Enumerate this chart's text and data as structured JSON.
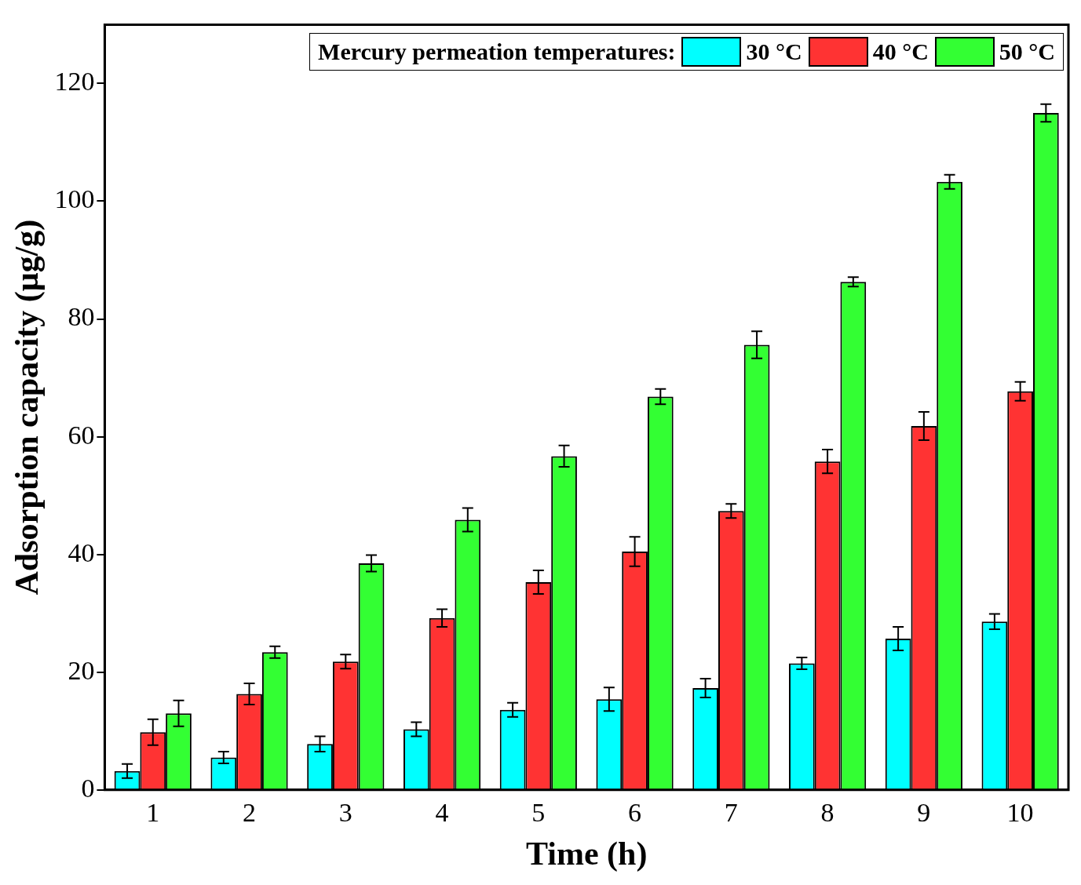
{
  "chart_data": {
    "type": "bar",
    "xlabel": "Time (h)",
    "ylabel": "Adsorption capacity (μg/g)",
    "legend_title": "Mercury permeation temperatures:",
    "legend": "top right",
    "categories": [
      "1",
      "2",
      "3",
      "4",
      "5",
      "6",
      "7",
      "8",
      "9",
      "10"
    ],
    "ylim": [
      0,
      130
    ],
    "yticks": [
      0,
      20,
      40,
      60,
      80,
      100,
      120
    ],
    "series": [
      {
        "name": "30 °C",
        "color": "#00ffff",
        "values": [
          3.2,
          5.5,
          7.8,
          10.3,
          13.6,
          15.4,
          17.3,
          21.5,
          25.7,
          28.6
        ],
        "errors": [
          1.2,
          1.0,
          1.3,
          1.2,
          1.2,
          2.0,
          1.6,
          1.0,
          2.0,
          1.3
        ]
      },
      {
        "name": "40 °C",
        "color": "#ff3333",
        "values": [
          9.8,
          16.3,
          21.8,
          29.2,
          35.3,
          40.5,
          47.4,
          55.8,
          61.8,
          67.7
        ],
        "errors": [
          2.2,
          1.8,
          1.2,
          1.5,
          2.0,
          2.5,
          1.2,
          2.0,
          2.4,
          1.6
        ]
      },
      {
        "name": "50 °C",
        "color": "#33ff33",
        "values": [
          13.0,
          23.4,
          38.5,
          45.9,
          56.7,
          66.8,
          75.6,
          86.3,
          103.3,
          115.0
        ],
        "errors": [
          2.2,
          1.0,
          1.4,
          2.0,
          1.8,
          1.3,
          2.3,
          0.8,
          1.2,
          1.5
        ]
      }
    ]
  }
}
